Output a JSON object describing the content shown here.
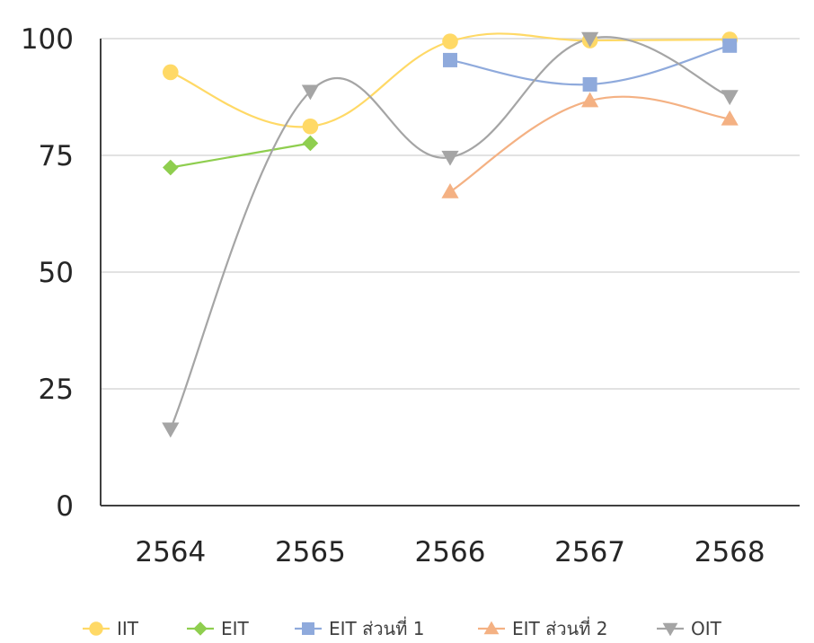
{
  "chart_data": {
    "type": "line",
    "title": "",
    "xlabel": "",
    "ylabel": "",
    "categories": [
      "2564",
      "2565",
      "2566",
      "2567",
      "2568"
    ],
    "ylim": [
      0,
      100
    ],
    "yticks": [
      0,
      25,
      50,
      75,
      100
    ],
    "grid": true,
    "legend_position": "bottom",
    "smooth": true,
    "series": [
      {
        "name": "IIT",
        "color": "#FFD966",
        "marker": "circle",
        "values": [
          92.8,
          81.2,
          99.4,
          99.6,
          99.8
        ]
      },
      {
        "name": "EIT",
        "color": "#8FCE4F",
        "marker": "diamond",
        "values": [
          72.4,
          77.6,
          null,
          null,
          null
        ]
      },
      {
        "name": "EIT ส่วนที่ 1",
        "color": "#8FAADC",
        "marker": "square",
        "values": [
          null,
          null,
          95.4,
          90.2,
          98.5
        ]
      },
      {
        "name": "EIT ส่วนที่ 2",
        "color": "#F4B183",
        "marker": "triangle-up",
        "values": [
          null,
          null,
          67.2,
          86.7,
          82.8
        ]
      },
      {
        "name": "OIT",
        "color": "#A5A5A5",
        "marker": "triangle-down",
        "values": [
          16.4,
          88.7,
          74.6,
          100,
          87.6
        ]
      }
    ]
  }
}
